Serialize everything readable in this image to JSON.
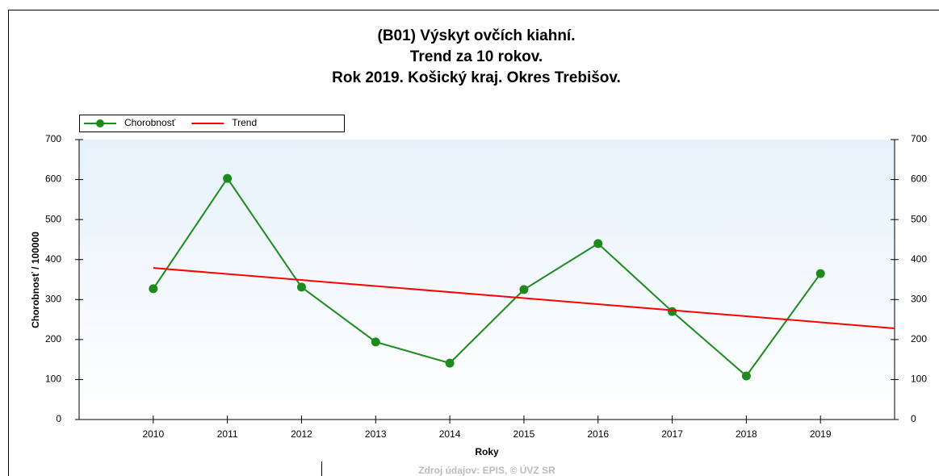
{
  "chart_data": {
    "type": "line",
    "title": [
      "(B01) Výskyt ovčích kiahní.",
      "Trend za 10 rokov.",
      "Rok 2019. Košický kraj. Okres Trebišov."
    ],
    "xlabel": "Roky",
    "ylabel": "Chorobnosť / 100000",
    "source": "Zdroj údajov: EPIS, © ÚVZ SR",
    "xlim": [
      2009,
      2020
    ],
    "xticks": [
      2010,
      2011,
      2012,
      2013,
      2014,
      2015,
      2016,
      2017,
      2018,
      2019
    ],
    "ylim": [
      0,
      700
    ],
    "yticks": [
      0,
      100,
      200,
      300,
      400,
      500,
      600,
      700
    ],
    "legend": "top-left",
    "series": [
      {
        "name": "Chorobnosť",
        "color": "#1e8a1e",
        "marker": true,
        "x": [
          2010,
          2011,
          2012,
          2013,
          2014,
          2015,
          2016,
          2017,
          2018,
          2019
        ],
        "values": [
          327,
          603,
          331,
          194,
          141,
          325,
          440,
          270,
          109,
          365
        ]
      },
      {
        "name": "Trend",
        "color": "#ff0000",
        "marker": false,
        "x": [
          2010,
          2020
        ],
        "values": [
          379,
          228
        ]
      }
    ]
  }
}
